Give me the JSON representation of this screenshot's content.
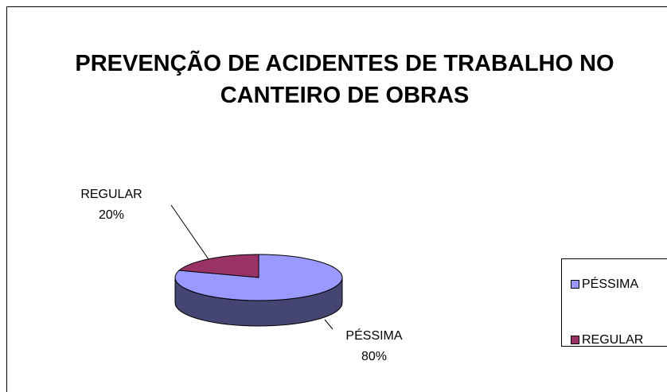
{
  "chart_data": {
    "type": "pie",
    "title": "PREVENÇÃO DE ACIDENTES DE TRABALHO NO CANTEIRO DE OBRAS",
    "categories": [
      "PÉSSIMA",
      "REGULAR"
    ],
    "values": [
      80,
      20
    ],
    "value_labels": [
      "80%",
      "20%"
    ],
    "colors": [
      "#9999ff",
      "#993366"
    ],
    "legend": "right"
  }
}
